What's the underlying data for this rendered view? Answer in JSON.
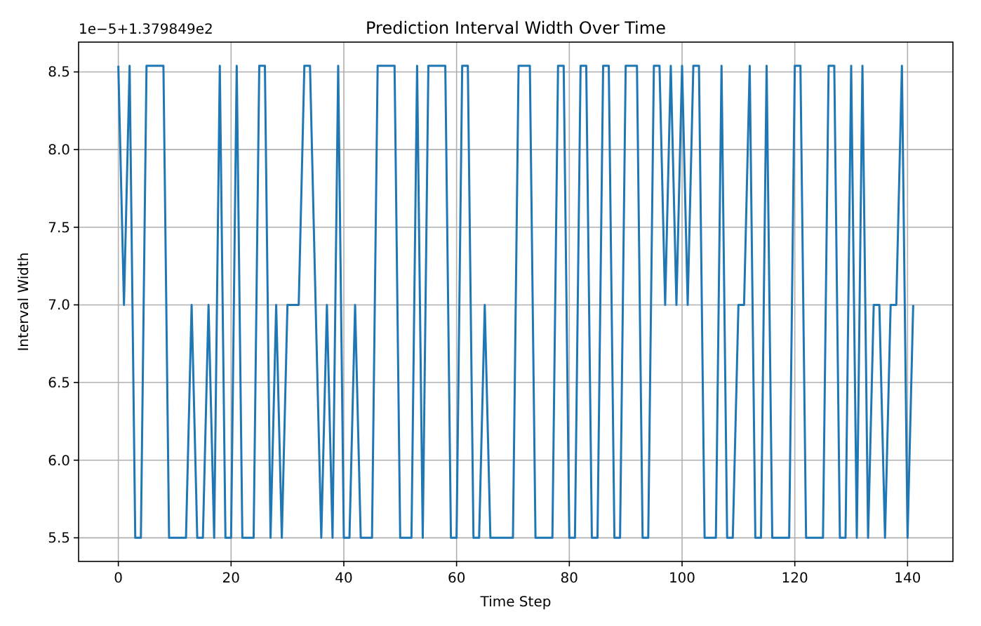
{
  "chart_data": {
    "type": "line",
    "title": "Prediction Interval Width Over Time",
    "xlabel": "Time Step",
    "ylabel": "Interval Width",
    "annotations": [
      "1e−5+1.379849e2"
    ],
    "x": [
      0,
      1,
      2,
      3,
      4,
      5,
      6,
      7,
      8,
      9,
      10,
      11,
      12,
      13,
      14,
      15,
      16,
      17,
      18,
      19,
      20,
      21,
      22,
      23,
      24,
      25,
      26,
      27,
      28,
      29,
      30,
      31,
      32,
      33,
      34,
      35,
      36,
      37,
      38,
      39,
      40,
      41,
      42,
      43,
      44,
      45,
      46,
      47,
      48,
      49,
      50,
      51,
      52,
      53,
      54,
      55,
      56,
      57,
      58,
      59,
      60,
      61,
      62,
      63,
      64,
      65,
      66,
      67,
      68,
      69,
      70,
      71,
      72,
      73,
      74,
      75,
      76,
      77,
      78,
      79,
      80,
      81,
      82,
      83,
      84,
      85,
      86,
      87,
      88,
      89,
      90,
      91,
      92,
      93,
      94,
      95,
      96,
      97,
      98,
      99,
      100,
      101,
      102,
      103,
      104,
      105,
      106,
      107,
      108,
      109,
      110,
      111,
      112,
      113,
      114,
      115,
      116,
      117,
      118,
      119,
      120,
      121,
      122,
      123,
      124,
      125,
      126,
      127,
      128,
      129,
      130,
      131,
      132,
      133,
      134,
      135,
      136,
      137,
      138,
      139,
      140,
      141
    ],
    "series": [
      {
        "color": "#1f77b4",
        "values": [
          8.54,
          7.0,
          8.54,
          5.5,
          5.5,
          8.54,
          8.54,
          8.54,
          8.54,
          5.5,
          5.5,
          5.5,
          5.5,
          7.0,
          5.5,
          5.5,
          7.0,
          5.5,
          8.54,
          5.5,
          5.5,
          8.54,
          5.5,
          5.5,
          5.5,
          8.54,
          8.54,
          5.5,
          7.0,
          5.5,
          7.0,
          7.0,
          7.0,
          8.54,
          8.54,
          7.0,
          5.5,
          7.0,
          5.5,
          8.54,
          5.5,
          5.5,
          7.0,
          5.5,
          5.5,
          5.5,
          8.54,
          8.54,
          8.54,
          8.54,
          5.5,
          5.5,
          5.5,
          8.54,
          5.5,
          8.54,
          8.54,
          8.54,
          8.54,
          5.5,
          5.5,
          8.54,
          8.54,
          5.5,
          5.5,
          7.0,
          5.5,
          5.5,
          5.5,
          5.5,
          5.5,
          8.54,
          8.54,
          8.54,
          5.5,
          5.5,
          5.5,
          5.5,
          8.54,
          8.54,
          5.5,
          5.5,
          8.54,
          8.54,
          5.5,
          5.5,
          8.54,
          8.54,
          5.5,
          5.5,
          8.54,
          8.54,
          8.54,
          5.5,
          5.5,
          8.54,
          8.54,
          7.0,
          8.54,
          7.0,
          8.54,
          7.0,
          8.54,
          8.54,
          5.5,
          5.5,
          5.5,
          8.54,
          5.5,
          5.5,
          7.0,
          7.0,
          8.54,
          5.5,
          5.5,
          8.54,
          5.5,
          5.5,
          5.5,
          5.5,
          8.54,
          8.54,
          5.5,
          5.5,
          5.5,
          5.5,
          8.54,
          8.54,
          5.5,
          5.5,
          8.54,
          5.5,
          8.54,
          5.5,
          7.0,
          7.0,
          5.5,
          7.0,
          7.0,
          8.54,
          5.5,
          7.0
        ]
      }
    ],
    "xlim": [
      -7.05,
      148.05
    ],
    "ylim": [
      5.348,
      8.692
    ],
    "xticks": [
      0,
      20,
      40,
      60,
      80,
      100,
      120,
      140
    ],
    "yticks": [
      5.5,
      {
        "value": 6,
        "label": "6.0"
      },
      6.5,
      {
        "value": 7,
        "label": "7.0"
      },
      7.5,
      {
        "value": 8,
        "label": "8.0"
      },
      8.5
    ],
    "grid": true,
    "marker": "none",
    "line_style": "solid"
  }
}
